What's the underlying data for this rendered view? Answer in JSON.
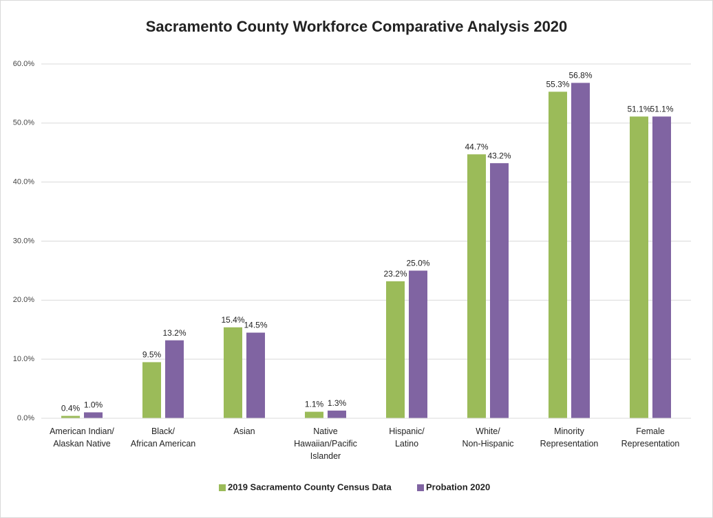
{
  "chart_data": {
    "type": "bar",
    "title": "Sacramento County Workforce Comparative Analysis 2020",
    "categories": [
      [
        "American Indian/",
        "Alaskan Native"
      ],
      [
        "Black/",
        "African American"
      ],
      [
        "Asian"
      ],
      [
        "Native",
        "Hawaiian/Pacific",
        "Islander"
      ],
      [
        "Hispanic/",
        "Latino"
      ],
      [
        "White/",
        "Non-Hispanic"
      ],
      [
        "Minority",
        "Representation"
      ],
      [
        "Female",
        "Representation"
      ]
    ],
    "series": [
      {
        "name": "2019 Sacramento County Census Data",
        "color": "#9bbb59",
        "values": [
          0.4,
          9.5,
          15.4,
          1.1,
          23.2,
          44.7,
          55.3,
          51.1
        ],
        "value_labels": [
          "0.4%",
          "9.5%",
          "15.4%",
          "1.1%",
          "23.2%",
          "44.7%",
          "55.3%",
          "51.1%"
        ]
      },
      {
        "name": "Probation 2020",
        "color": "#8064a2",
        "values": [
          1.0,
          13.2,
          14.5,
          1.3,
          25.0,
          43.2,
          56.8,
          51.1
        ],
        "value_labels": [
          "1.0%",
          "13.2%",
          "14.5%",
          "1.3%",
          "25.0%",
          "43.2%",
          "56.8%",
          "51.1%"
        ]
      }
    ],
    "ylim": [
      0,
      60
    ],
    "yticks": [
      {
        "value": 0,
        "label": "0.0%"
      },
      {
        "value": 10,
        "label": "10.0%"
      },
      {
        "value": 20,
        "label": "20.0%"
      },
      {
        "value": 30,
        "label": "30.0%"
      },
      {
        "value": 40,
        "label": "40.0%"
      },
      {
        "value": 50,
        "label": "50.0%"
      },
      {
        "value": 60,
        "label": "60.0%"
      }
    ],
    "grid": true,
    "legend": "bottom"
  }
}
